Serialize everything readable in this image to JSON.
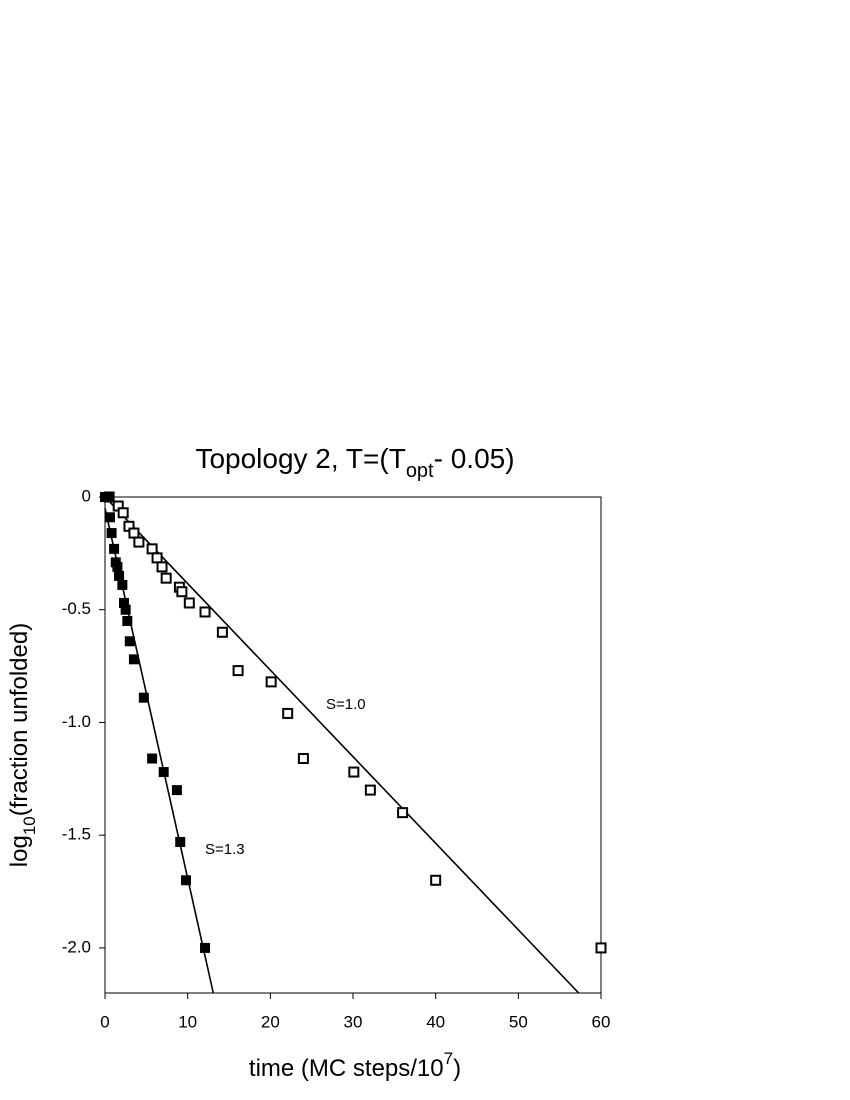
{
  "chart_data": {
    "type": "scatter",
    "title": [
      "Topology 2, T=(T",
      "opt",
      "- 0.05)"
    ],
    "x_label": [
      "time (MC steps/10",
      "7",
      ")"
    ],
    "y_label": [
      "log",
      "10",
      "(fraction unfolded)"
    ],
    "xlim": [
      0,
      60
    ],
    "ylim": [
      -2.2,
      0
    ],
    "xticks": [
      0,
      10,
      20,
      30,
      40,
      50,
      60
    ],
    "yticks": [
      0,
      -0.5,
      {
        "value": -1.0,
        "label": "-1.0"
      },
      -1.5,
      {
        "value": -2.0,
        "label": "-2.0"
      }
    ],
    "series": [
      {
        "color": "#000000",
        "marker": "open-square",
        "x": [
          0.5,
          1.6,
          2.2,
          2.9,
          3.5,
          4.1,
          5.7,
          6.3,
          6.9,
          7.4,
          9.0,
          9.3,
          10.2,
          12.1,
          14.2,
          16.1,
          20.1,
          22.1,
          24.0,
          30.1,
          32.1,
          36.0,
          40.0,
          60
        ],
        "values": [
          0,
          -0.04,
          -0.07,
          -0.13,
          -0.16,
          -0.2,
          -0.23,
          -0.27,
          -0.31,
          -0.36,
          -0.4,
          -0.42,
          -0.47,
          -0.51,
          -0.6,
          -0.77,
          -0.82,
          -0.96,
          -1.16,
          -1.22,
          -1.3,
          -1.4,
          -1.7,
          -2.0
        ]
      },
      {
        "color": "#000000",
        "marker": "filled-square",
        "x": [
          0,
          0.4,
          0.6,
          0.8,
          1.1,
          1.3,
          1.5,
          1.7,
          2.1,
          2.3,
          2.5,
          2.7,
          3.0,
          3.5,
          4.7,
          5.7,
          7.1,
          8.7,
          9.1,
          9.8,
          12.1
        ],
        "values": [
          0,
          0,
          -0.09,
          -0.16,
          -0.23,
          -0.29,
          -0.31,
          -0.35,
          -0.39,
          -0.47,
          -0.5,
          -0.55,
          -0.64,
          -0.72,
          -0.89,
          -1.16,
          -1.22,
          -1.3,
          -1.53,
          -1.7,
          -2.0
        ]
      }
    ],
    "fits": [
      {
        "color": "#000000",
        "x": [
          0,
          57.3
        ],
        "values": [
          0,
          -2.2
        ]
      },
      {
        "color": "#000000",
        "x": [
          0,
          13.1
        ],
        "values": [
          -0.05,
          -2.2
        ]
      }
    ],
    "annotations": [
      "S=1.0",
      "S=1.3"
    ]
  }
}
